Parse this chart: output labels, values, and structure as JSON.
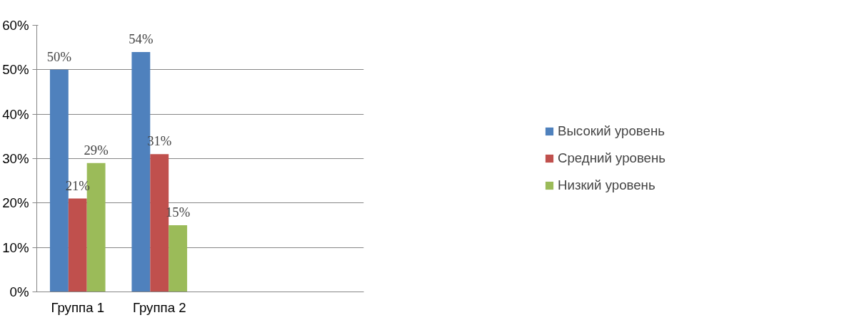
{
  "chart_data": {
    "type": "bar",
    "categories": [
      "Группа 1",
      "Группа 2",
      null,
      null
    ],
    "series": [
      {
        "name": "Высокий уровень",
        "color": "#4f81bd",
        "values": [
          50,
          54,
          null,
          null
        ],
        "value_labels": [
          "50%",
          "54%",
          null,
          null
        ]
      },
      {
        "name": "Средний уровень",
        "color": "#c0504d",
        "values": [
          21,
          31,
          null,
          null
        ],
        "value_labels": [
          "21%",
          "31%",
          null,
          null
        ]
      },
      {
        "name": "Низкий уровень",
        "color": "#9bbb59",
        "values": [
          29,
          15,
          null,
          null
        ],
        "value_labels": [
          "29%",
          "15%",
          null,
          null
        ]
      }
    ],
    "ylim": [
      0,
      60
    ],
    "yticks": [
      {
        "value": 0,
        "label": "0%"
      },
      {
        "value": 10,
        "label": "10%"
      },
      {
        "value": 20,
        "label": "20%"
      },
      {
        "value": 30,
        "label": "30%"
      },
      {
        "value": 40,
        "label": "40%"
      },
      {
        "value": 50,
        "label": "50%"
      },
      {
        "value": 60,
        "label": "60%"
      }
    ],
    "grid": "y",
    "legend": "right"
  }
}
